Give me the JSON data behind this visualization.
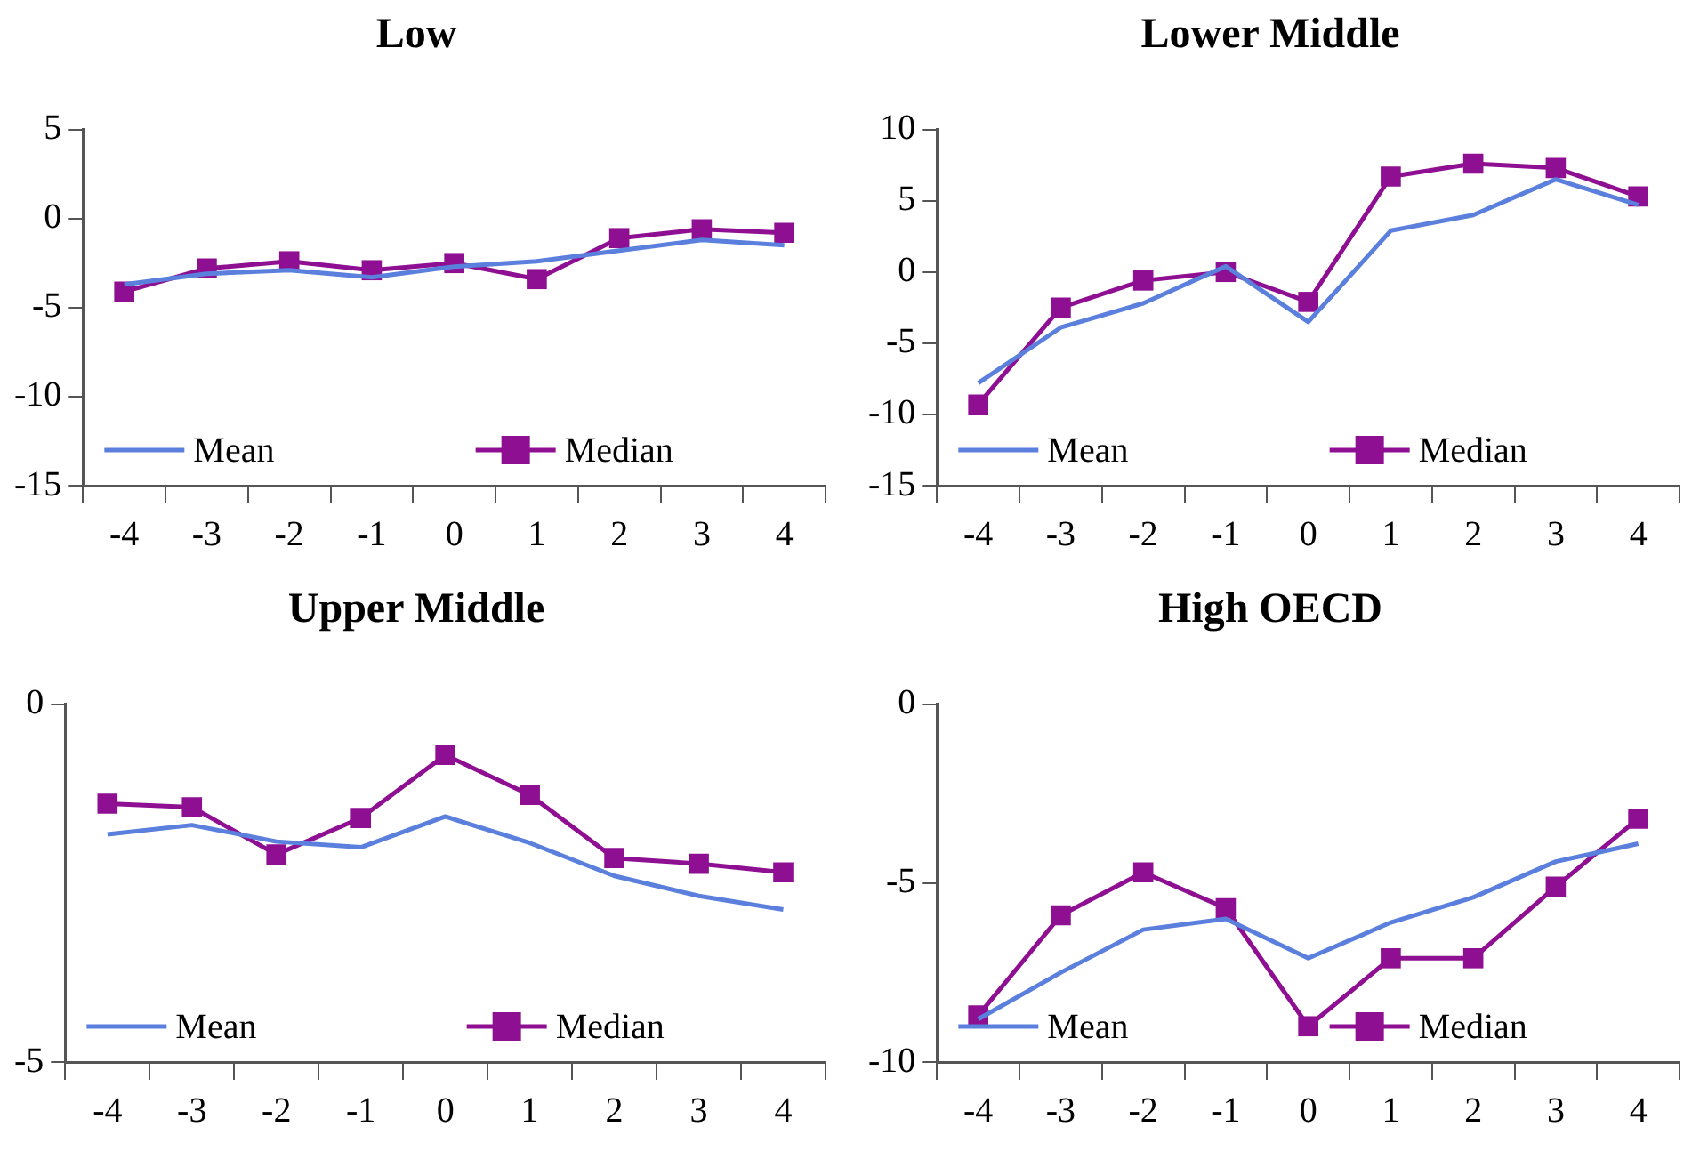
{
  "chart_data": [
    {
      "type": "line",
      "title": "Low",
      "categories": [
        "-4",
        "-3",
        "-2",
        "-1",
        "0",
        "1",
        "2",
        "3",
        "4"
      ],
      "ylim": [
        -15,
        5
      ],
      "yticks": [
        -15,
        -10,
        -5,
        0,
        5
      ],
      "grid": false,
      "legend": "bottom",
      "series": [
        {
          "name": "Mean",
          "color": "#5b7fdc",
          "marker": "none",
          "values": [
            -3.7,
            -3.1,
            -2.9,
            -3.3,
            -2.7,
            -2.4,
            -1.8,
            -1.2,
            -1.5
          ]
        },
        {
          "name": "Median",
          "color": "#8e0f91",
          "marker": "square",
          "values": [
            -4.1,
            -2.8,
            -2.4,
            -2.9,
            -2.5,
            -3.4,
            -1.1,
            -0.6,
            -0.8
          ]
        }
      ]
    },
    {
      "type": "line",
      "title": "Lower Middle",
      "categories": [
        "-4",
        "-3",
        "-2",
        "-1",
        "0",
        "1",
        "2",
        "3",
        "4"
      ],
      "ylim": [
        -15,
        10
      ],
      "yticks": [
        -15,
        -10,
        -5,
        0,
        5,
        10
      ],
      "grid": false,
      "legend": "bottom",
      "series": [
        {
          "name": "Mean",
          "color": "#5b7fdc",
          "marker": "none",
          "values": [
            -7.8,
            -3.9,
            -2.2,
            0.4,
            -3.5,
            2.9,
            4.0,
            6.5,
            4.7
          ]
        },
        {
          "name": "Median",
          "color": "#8e0f91",
          "marker": "square",
          "values": [
            -9.3,
            -2.5,
            -0.6,
            0,
            -2.1,
            6.7,
            7.6,
            7.3,
            5.3
          ]
        }
      ]
    },
    {
      "type": "line",
      "title": "Upper Middle",
      "categories": [
        "-4",
        "-3",
        "-2",
        "-1",
        "0",
        "1",
        "2",
        "3",
        "4"
      ],
      "ylim": [
        -5,
        0
      ],
      "yticks": [
        -5,
        0
      ],
      "grid": false,
      "legend": "bottom",
      "series": [
        {
          "name": "Mean",
          "color": "#5b7fdc",
          "marker": "none",
          "values": [
            -1.82,
            -1.69,
            -1.92,
            -2.0,
            -1.57,
            -1.94,
            -2.4,
            -2.68,
            -2.87
          ]
        },
        {
          "name": "Median",
          "color": "#8e0f91",
          "marker": "square",
          "values": [
            -1.39,
            -1.44,
            -2.1,
            -1.59,
            -0.71,
            -1.27,
            -2.15,
            -2.23,
            -2.35
          ]
        }
      ]
    },
    {
      "type": "line",
      "title": "High OECD",
      "categories": [
        "-4",
        "-3",
        "-2",
        "-1",
        "0",
        "1",
        "2",
        "3",
        "4"
      ],
      "ylim": [
        -10,
        0
      ],
      "yticks": [
        -10,
        -5,
        0
      ],
      "grid": false,
      "legend": "bottom",
      "series": [
        {
          "name": "Mean",
          "color": "#5b7fdc",
          "marker": "none",
          "values": [
            -8.8,
            -7.5,
            -6.3,
            -6.0,
            -7.1,
            -6.1,
            -5.4,
            -4.4,
            -3.9
          ]
        },
        {
          "name": "Median",
          "color": "#8e0f91",
          "marker": "square",
          "values": [
            -8.7,
            -5.9,
            -4.7,
            -5.7,
            -9.0,
            -7.1,
            -7.1,
            -5.1,
            -3.2
          ]
        }
      ]
    }
  ]
}
